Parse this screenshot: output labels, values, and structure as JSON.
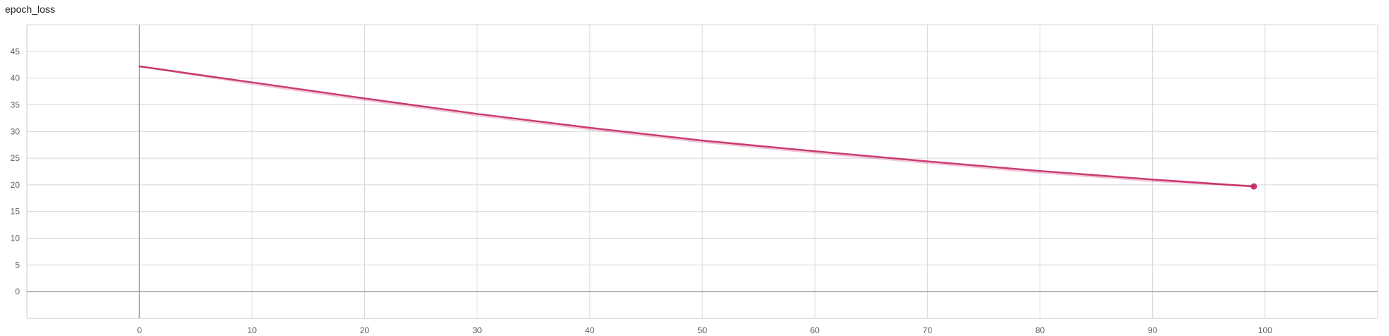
{
  "chart_data": {
    "type": "line",
    "title": "epoch_loss",
    "xlabel": "",
    "ylabel": "",
    "xlim": [
      -10,
      110
    ],
    "ylim": [
      -5,
      50
    ],
    "x_ticks": [
      0,
      10,
      20,
      30,
      40,
      50,
      60,
      70,
      80,
      90,
      100
    ],
    "y_ticks": [
      0,
      5,
      10,
      15,
      20,
      25,
      30,
      35,
      40,
      45
    ],
    "grid": true,
    "series": [
      {
        "color": "#c2185b",
        "x": [
          0,
          10,
          20,
          30,
          40,
          50,
          60,
          70,
          80,
          90,
          99
        ],
        "y": [
          42.2,
          39.2,
          36.2,
          33.3,
          30.7,
          28.3,
          26.3,
          24.4,
          22.6,
          21.0,
          19.7
        ]
      }
    ]
  }
}
